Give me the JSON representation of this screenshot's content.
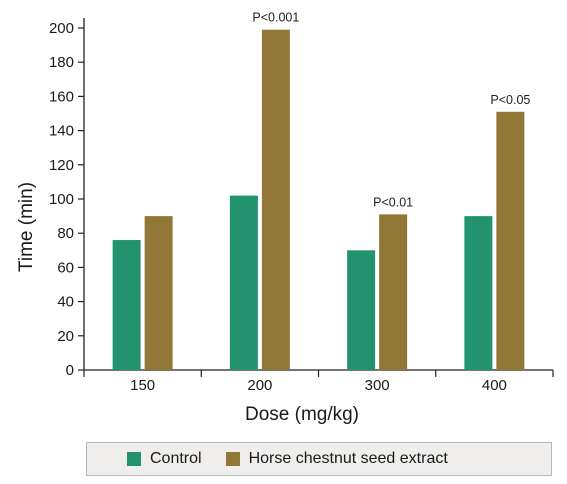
{
  "chart_data": {
    "type": "bar",
    "categories": [
      "150",
      "200",
      "300",
      "400"
    ],
    "series": [
      {
        "name": "Control",
        "color": "#22936e",
        "values": [
          76,
          102,
          70,
          90
        ]
      },
      {
        "name": "Horse chestnut seed extract",
        "color": "#917836",
        "values": [
          90,
          199,
          91,
          151
        ]
      }
    ],
    "annotations": [
      "",
      "P<0.001",
      "P<0.01",
      "P<0.05"
    ],
    "xlabel": "Dose (mg/kg)",
    "ylabel": "Time (min)",
    "ylim": [
      0,
      200
    ],
    "yticks": [
      0,
      20,
      40,
      60,
      80,
      100,
      120,
      140,
      160,
      180,
      200
    ],
    "grid": false,
    "legend_position": "bottom"
  }
}
